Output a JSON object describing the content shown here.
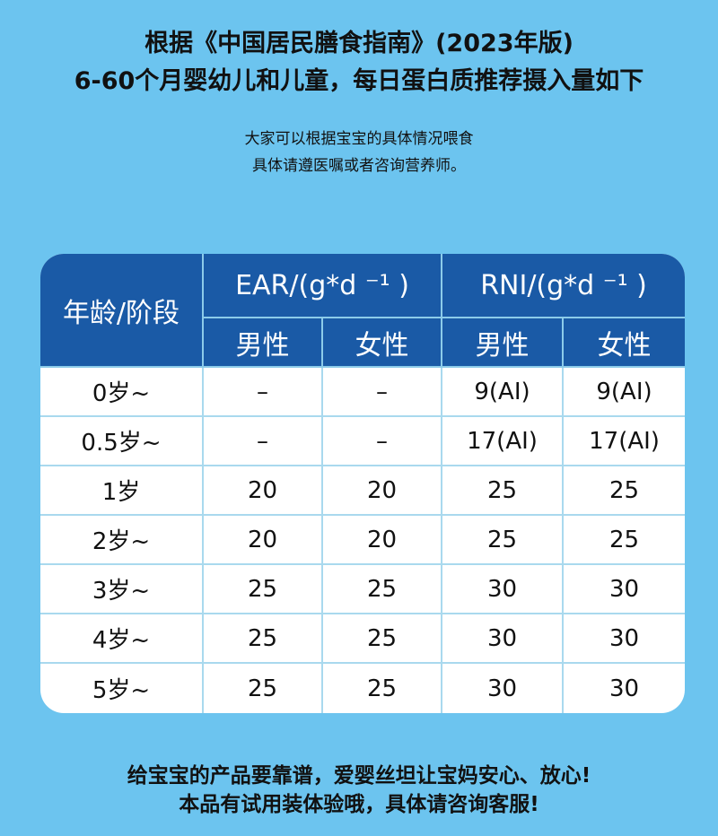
{
  "title_line1": "根据《中国居民膳食指南》(2023年版)",
  "title_line2": "6-60个月婴幼儿和儿童，每日蛋白质推荐摄入量如下",
  "subtitle_line1": "大家可以根据宝宝的具体情况喂食",
  "subtitle_line2": "具体请遵医嘱或者咨询营养师。",
  "table": {
    "age_header": "年龄/阶段",
    "ear_header": "EAR/(g*d ⁻¹ )",
    "rni_header": "RNI/(g*d ⁻¹ )",
    "male": "男性",
    "female": "女性",
    "rows": [
      [
        "0岁~",
        "–",
        "–",
        "9(AI)",
        "9(AI)"
      ],
      [
        "0.5岁~",
        "–",
        "–",
        "17(AI)",
        "17(AI)"
      ],
      [
        "1岁",
        "20",
        "20",
        "25",
        "25"
      ],
      [
        "2岁~",
        "20",
        "20",
        "25",
        "25"
      ],
      [
        "3岁~",
        "25",
        "25",
        "30",
        "30"
      ],
      [
        "4岁~",
        "25",
        "25",
        "30",
        "30"
      ],
      [
        "5岁~",
        "25",
        "25",
        "30",
        "30"
      ]
    ]
  },
  "footer_line1": "给宝宝的产品要靠谱，爱婴丝坦让宝妈安心、放心!",
  "footer_line2": "本品有试用装体验哦，具体请咨询客服!",
  "colors": {
    "background": "#6cc4ef",
    "header": "#1a5aa6"
  }
}
